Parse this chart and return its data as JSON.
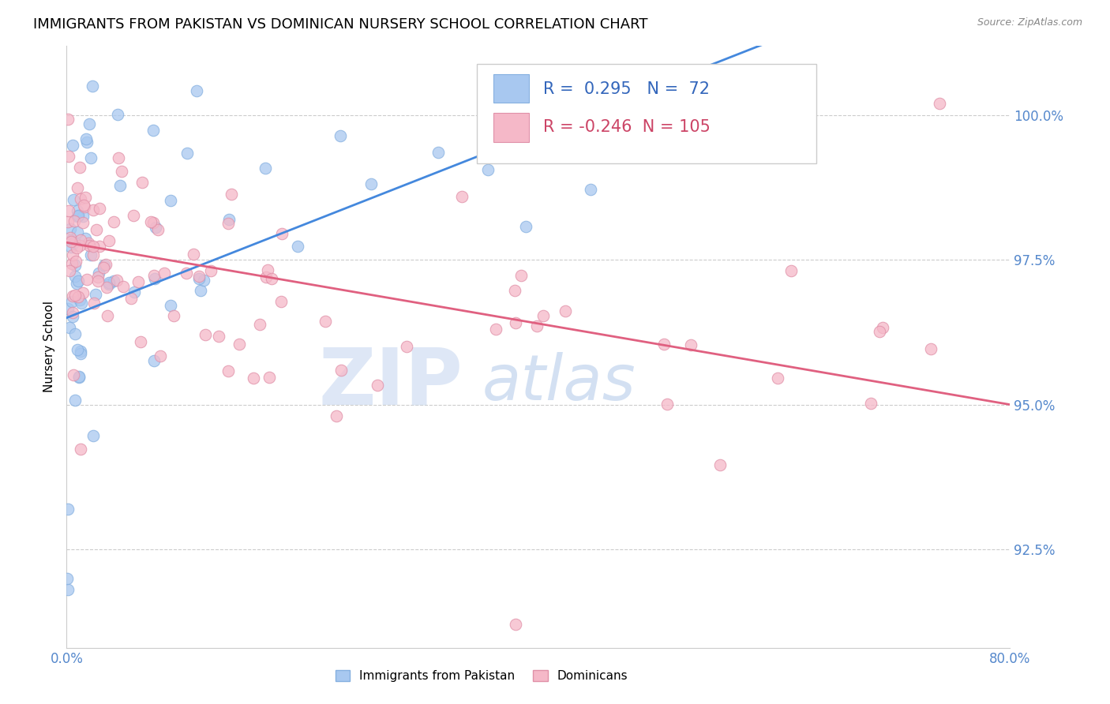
{
  "title": "IMMIGRANTS FROM PAKISTAN VS DOMINICAN NURSERY SCHOOL CORRELATION CHART",
  "source_text": "Source: ZipAtlas.com",
  "ylabel": "Nursery School",
  "legend_label_blue": "Immigrants from Pakistan",
  "legend_label_pink": "Dominicans",
  "R_blue": 0.295,
  "N_blue": 72,
  "R_pink": -0.246,
  "N_pink": 105,
  "xlim": [
    0.0,
    80.0
  ],
  "ylim": [
    90.8,
    101.2
  ],
  "yticks": [
    92.5,
    95.0,
    97.5,
    100.0
  ],
  "ytick_labels": [
    "92.5%",
    "95.0%",
    "97.5%",
    "100.0%"
  ],
  "blue_color": "#a8c8f0",
  "blue_edge_color": "#85b0e0",
  "pink_color": "#f5b8c8",
  "pink_edge_color": "#e090a8",
  "blue_line_color": "#4488dd",
  "pink_line_color": "#e06080",
  "axis_label_color": "#5588cc",
  "watermark_zip_color": "#c8d8f0",
  "watermark_atlas_color": "#b0c8e8",
  "title_fontsize": 13,
  "label_fontsize": 11,
  "tick_fontsize": 12,
  "legend_fontsize": 15,
  "background_color": "#ffffff",
  "grid_color": "#cccccc",
  "legend_text_color": "#3366bb",
  "legend_pink_text_color": "#cc4466"
}
